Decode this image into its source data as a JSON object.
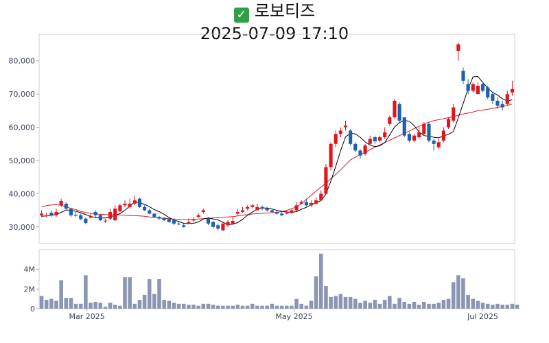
{
  "header": {
    "check_icon": "white-check-mark-icon",
    "name": "로보티즈",
    "datetime": "2025-07-09 17:10"
  },
  "colors": {
    "up": "#e0161e",
    "down": "#1f5fae",
    "ma5": "#000000",
    "ma20": "#e0161e",
    "volume": "#8c96b3",
    "check": "#2ea043"
  },
  "chart_data": [
    {
      "type": "candlestick",
      "title": "",
      "ylim": [
        25000,
        88000
      ],
      "yticks": [
        30000,
        40000,
        50000,
        60000,
        70000,
        80000
      ],
      "ytick_labels": [
        "30,000",
        "40,000",
        "50,000",
        "60,000",
        "70,000",
        "80,000"
      ],
      "x": [
        "2025-02-17",
        "2025-02-18",
        "2025-02-19",
        "2025-02-20",
        "2025-02-21",
        "2025-02-24",
        "2025-02-25",
        "2025-02-26",
        "2025-02-27",
        "2025-02-28",
        "2025-03-04",
        "2025-03-05",
        "2025-03-06",
        "2025-03-07",
        "2025-03-10",
        "2025-03-11",
        "2025-03-12",
        "2025-03-13",
        "2025-03-14",
        "2025-03-17",
        "2025-03-18",
        "2025-03-19",
        "2025-03-20",
        "2025-03-21",
        "2025-03-24",
        "2025-03-25",
        "2025-03-26",
        "2025-03-27",
        "2025-03-28",
        "2025-03-31",
        "2025-04-01",
        "2025-04-02",
        "2025-04-03",
        "2025-04-04",
        "2025-04-07",
        "2025-04-08",
        "2025-04-09",
        "2025-04-10",
        "2025-04-11",
        "2025-04-14",
        "2025-04-15",
        "2025-04-16",
        "2025-04-17",
        "2025-04-18",
        "2025-04-21",
        "2025-04-22",
        "2025-04-23",
        "2025-04-24",
        "2025-04-25",
        "2025-04-28",
        "2025-04-29",
        "2025-04-30",
        "2025-05-02",
        "2025-05-07",
        "2025-05-08",
        "2025-05-09",
        "2025-05-12",
        "2025-05-13",
        "2025-05-14",
        "2025-05-15",
        "2025-05-16",
        "2025-05-19",
        "2025-05-20",
        "2025-05-21",
        "2025-05-22",
        "2025-05-23",
        "2025-05-26",
        "2025-05-27",
        "2025-05-28",
        "2025-05-29",
        "2025-05-30",
        "2025-06-02",
        "2025-06-04",
        "2025-06-05",
        "2025-06-09",
        "2025-06-10",
        "2025-06-11",
        "2025-06-12",
        "2025-06-13",
        "2025-06-16",
        "2025-06-17",
        "2025-06-18",
        "2025-06-19",
        "2025-06-20",
        "2025-06-23",
        "2025-06-24",
        "2025-06-25",
        "2025-06-26",
        "2025-06-27",
        "2025-06-30",
        "2025-07-01",
        "2025-07-02",
        "2025-07-03",
        "2025-07-04",
        "2025-07-07",
        "2025-07-08",
        "2025-07-09"
      ],
      "open": [
        33500,
        33400,
        34300,
        33500,
        36500,
        37000,
        35500,
        33600,
        33500,
        32500,
        32800,
        34500,
        33600,
        31900,
        32500,
        32000,
        34700,
        36500,
        36000,
        37000,
        38500,
        36000,
        35000,
        34000,
        33000,
        32700,
        32500,
        32000,
        31000,
        30500,
        31000,
        32000,
        33000,
        34500,
        32500,
        31500,
        30500,
        29000,
        30500,
        31000,
        34000,
        34500,
        35500,
        36000,
        35000,
        36000,
        35500,
        35000,
        34500,
        34000,
        34000,
        34200,
        35000,
        37000,
        37500,
        36500,
        37000,
        38000,
        40000,
        48000,
        55000,
        58000,
        60000,
        59000,
        55000,
        53000,
        52000,
        55000,
        57000,
        56000,
        57000,
        61000,
        63000,
        67000,
        63000,
        58000,
        56000,
        57000,
        58000,
        61000,
        56000,
        54000,
        56000,
        60000,
        62000,
        83000,
        77000,
        73000,
        71000,
        70000,
        73000,
        72000,
        70000,
        68000,
        67000,
        67000,
        70500
      ],
      "close": [
        34000,
        33500,
        33400,
        34500,
        37800,
        35500,
        33500,
        33400,
        32400,
        31200,
        33200,
        33500,
        32000,
        31900,
        34500,
        35500,
        36500,
        37000,
        37000,
        38000,
        36000,
        35000,
        34000,
        33000,
        32500,
        32000,
        31500,
        31000,
        30800,
        30000,
        31500,
        32200,
        33500,
        35000,
        31000,
        30000,
        29500,
        31000,
        31500,
        31800,
        34500,
        35000,
        36000,
        36500,
        36000,
        35500,
        35000,
        34500,
        34000,
        33500,
        34300,
        35000,
        36500,
        37500,
        36500,
        37200,
        38000,
        40000,
        48000,
        55000,
        58000,
        59000,
        60500,
        55000,
        53000,
        51500,
        54500,
        56500,
        55800,
        57000,
        58500,
        63000,
        68000,
        62000,
        57500,
        56000,
        57500,
        58500,
        61000,
        56000,
        55000,
        55500,
        59000,
        62500,
        66000,
        85000,
        74000,
        71000,
        73000,
        72500,
        71000,
        69000,
        68000,
        66500,
        66000,
        70000,
        71500
      ],
      "high": [
        35000,
        34300,
        35000,
        35500,
        38500,
        37500,
        35800,
        34500,
        34000,
        32800,
        34000,
        35000,
        33800,
        32500,
        35500,
        36500,
        37000,
        38000,
        38500,
        39500,
        38800,
        36500,
        35500,
        34200,
        33300,
        33000,
        32600,
        32200,
        31500,
        31000,
        32500,
        33000,
        34200,
        35500,
        33000,
        31800,
        31000,
        31500,
        32000,
        33000,
        35500,
        36000,
        36500,
        37000,
        37000,
        36500,
        36000,
        35500,
        35000,
        34500,
        35000,
        35500,
        37500,
        38000,
        38500,
        38000,
        39000,
        41000,
        49000,
        55500,
        59000,
        60000,
        62000,
        59500,
        55500,
        53500,
        55000,
        57500,
        57500,
        57500,
        60000,
        63500,
        68500,
        67500,
        63000,
        58500,
        58000,
        60000,
        61500,
        61500,
        56500,
        56500,
        60000,
        63000,
        67000,
        85500,
        78000,
        74500,
        73500,
        73500,
        73500,
        72500,
        70500,
        69000,
        68000,
        71000,
        74000
      ],
      "low": [
        33000,
        32800,
        33000,
        33000,
        36000,
        35000,
        33000,
        33000,
        32000,
        30800,
        32500,
        33000,
        31800,
        31200,
        32000,
        31800,
        34500,
        36000,
        35500,
        36500,
        35800,
        34800,
        33800,
        32800,
        32200,
        31800,
        31200,
        30500,
        30500,
        29800,
        31000,
        31500,
        32800,
        34000,
        30500,
        29500,
        29000,
        28800,
        30000,
        30800,
        33500,
        34300,
        35000,
        35500,
        35500,
        35000,
        34600,
        34200,
        33700,
        33300,
        33800,
        34000,
        34800,
        36800,
        36200,
        36000,
        36800,
        37800,
        40000,
        47000,
        54000,
        57000,
        59000,
        54500,
        52500,
        50500,
        51500,
        54500,
        55000,
        55500,
        56500,
        60500,
        62500,
        61500,
        57000,
        55500,
        55500,
        56500,
        57500,
        55500,
        53000,
        53500,
        55500,
        59500,
        61500,
        80000,
        73000,
        70000,
        70500,
        70000,
        70500,
        68500,
        67000,
        65500,
        65000,
        66500,
        69500
      ],
      "ma5": [
        33200,
        33300,
        33500,
        33700,
        34400,
        35100,
        35000,
        34700,
        34300,
        33700,
        33200,
        32800,
        32700,
        32700,
        33000,
        33500,
        34000,
        35000,
        36300,
        37500,
        37300,
        36800,
        36100,
        35200,
        34600,
        33800,
        32800,
        32100,
        31600,
        31100,
        31000,
        31100,
        31500,
        32400,
        32700,
        32400,
        32100,
        31400,
        30700,
        30800,
        31300,
        32300,
        33500,
        34500,
        35300,
        35700,
        35700,
        35400,
        35000,
        34700,
        34500,
        34400,
        34600,
        35300,
        35900,
        36700,
        37300,
        37900,
        39900,
        43800,
        48200,
        53000,
        57100,
        58200,
        58000,
        57000,
        55600,
        54600,
        54200,
        54400,
        55400,
        57700,
        60100,
        61400,
        62100,
        61800,
        60500,
        58600,
        57500,
        57300,
        57000,
        56800,
        57400,
        57900,
        58700,
        62800,
        67200,
        71600,
        75200,
        75300,
        73500,
        71800,
        70500,
        69700,
        68600,
        67900,
        68300
      ],
      "ma20": [
        36000,
        36400,
        36600,
        36700,
        36500,
        36000,
        35600,
        35200,
        34700,
        34300,
        34100,
        33900,
        33800,
        33700,
        33700,
        33600,
        33600,
        33500,
        33400,
        33400,
        33300,
        33200,
        33000,
        32800,
        32700,
        32600,
        32500,
        32400,
        32300,
        32300,
        32300,
        32300,
        32400,
        32500,
        32600,
        32700,
        32800,
        32900,
        33000,
        33100,
        33300,
        33500,
        33700,
        33900,
        34000,
        34100,
        34200,
        34300,
        34400,
        34600,
        35000,
        35500,
        36000,
        37000,
        38300,
        39500,
        40800,
        42000,
        43200,
        44500,
        45800,
        47200,
        48700,
        50200,
        51000,
        51800,
        52500,
        53300,
        54000,
        54700,
        55400,
        56100,
        56800,
        57500,
        58200,
        58900,
        59600,
        60300,
        61000,
        61500,
        62000,
        62300,
        62600,
        62900,
        63200,
        63600,
        64000,
        64300,
        64600,
        65000,
        65200,
        65400,
        65700,
        66000,
        66300,
        66600,
        67000
      ]
    },
    {
      "type": "bar",
      "title": "",
      "ylim": [
        0,
        6000000
      ],
      "yticks": [
        0,
        2000000,
        4000000
      ],
      "ytick_labels": [
        "0",
        "2M",
        "4M"
      ],
      "xtick_labels": [
        "Mar 2025",
        "May 2025",
        "Jul 2025"
      ],
      "xtick_dates": [
        "2025-03-01",
        "2025-05-01",
        "2025-07-01"
      ],
      "volume": [
        1300000,
        900000,
        1000000,
        800000,
        2900000,
        1100000,
        1100000,
        500000,
        500000,
        3400000,
        600000,
        700000,
        600000,
        200000,
        600000,
        400000,
        300000,
        3200000,
        3200000,
        500000,
        900000,
        1400000,
        3000000,
        1500000,
        3000000,
        900000,
        800000,
        600000,
        500000,
        500000,
        400000,
        400000,
        300000,
        500000,
        500000,
        400000,
        300000,
        300000,
        300000,
        300000,
        400000,
        300000,
        300000,
        500000,
        300000,
        300000,
        300000,
        500000,
        300000,
        300000,
        300000,
        300000,
        1000000,
        500000,
        300000,
        800000,
        3300000,
        5600000,
        2300000,
        1200000,
        1300000,
        1500000,
        1200000,
        1200000,
        1000000,
        600000,
        800000,
        600000,
        900000,
        500000,
        900000,
        1300000,
        500000,
        1100000,
        700000,
        500000,
        700000,
        400000,
        700000,
        500000,
        500000,
        600000,
        900000,
        1000000,
        2700000,
        3400000,
        3100000,
        1400000,
        1000000,
        800000,
        600000,
        500000,
        400000,
        500000,
        400000,
        400000,
        500000,
        400000
      ]
    }
  ]
}
